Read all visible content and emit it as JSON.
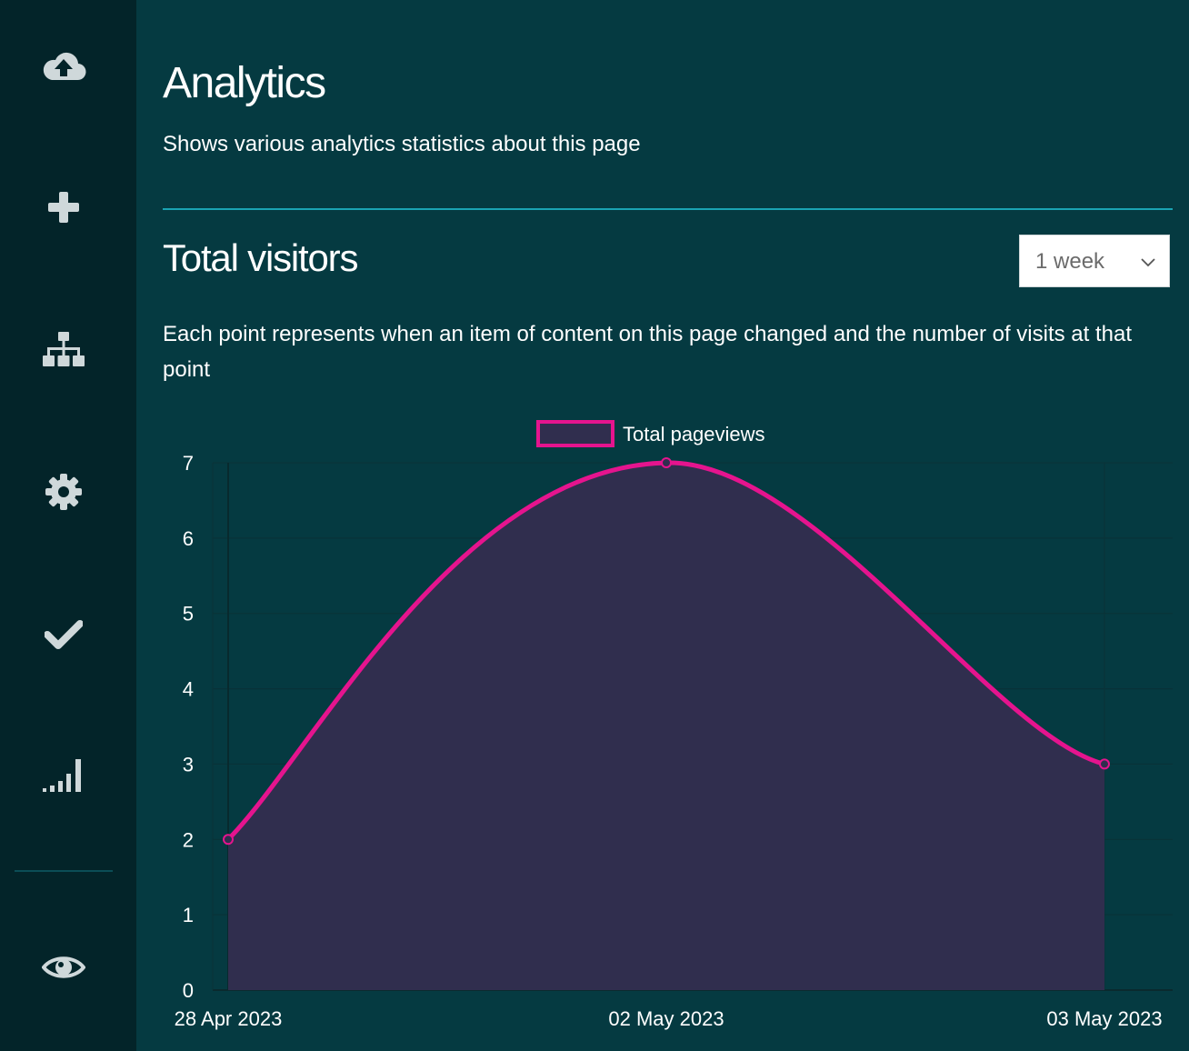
{
  "sidebar": {
    "items": [
      {
        "icon": "cloud-upload-icon"
      },
      {
        "icon": "plus-icon"
      },
      {
        "icon": "sitemap-icon"
      },
      {
        "icon": "gear-icon"
      },
      {
        "icon": "check-icon"
      },
      {
        "icon": "signal-bars-icon"
      },
      {
        "icon": "eye-icon"
      }
    ]
  },
  "header": {
    "title": "Analytics",
    "subtitle": "Shows various analytics statistics about this page"
  },
  "section": {
    "title": "Total visitors",
    "range_select": {
      "value": "1 week"
    },
    "description": "Each point represents when an item of content on this page changed and the number of visits at that point"
  },
  "colors": {
    "background": "#053a41",
    "sidebar": "#032429",
    "accent_rule": "#1aa3b3",
    "series_line": "#e5148e",
    "series_fill": "#302e4e"
  },
  "chart_data": {
    "type": "area",
    "x": [
      "28 Apr 2023",
      "02 May 2023",
      "03 May 2023"
    ],
    "series": [
      {
        "name": "Total pageviews",
        "values": [
          2,
          7,
          3
        ]
      }
    ],
    "yticks": [
      0,
      1,
      2,
      3,
      4,
      5,
      6,
      7
    ],
    "ylim": [
      0,
      7
    ],
    "grid": true,
    "legend": "top-center",
    "title": "",
    "xlabel": "",
    "ylabel": ""
  }
}
